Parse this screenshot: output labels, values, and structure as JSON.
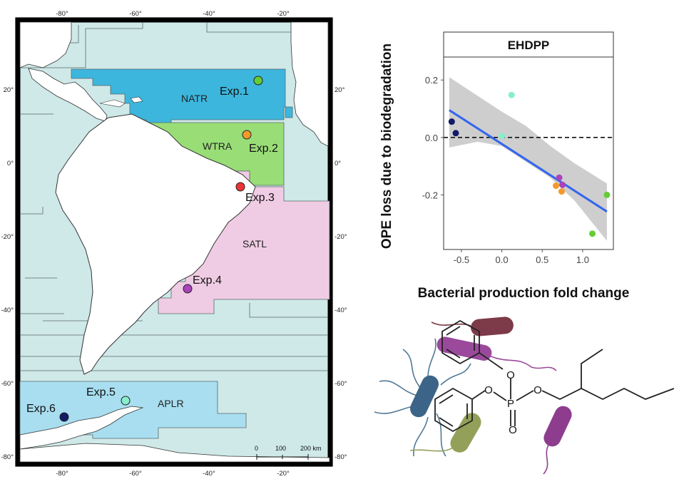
{
  "map": {
    "top_ticks": [
      "-80°",
      "-60°",
      "-40°",
      "-20°"
    ],
    "bottom_ticks": [
      "-80°",
      "-60°",
      "-40°",
      "-20°"
    ],
    "left_ticks": [
      "20°",
      "0°",
      "-20°",
      "-40°",
      "-60°",
      "-80°"
    ],
    "right_ticks": [
      "20°",
      "0°",
      "-20°",
      "-40°",
      "-60°",
      "-80°"
    ],
    "provinces": [
      {
        "code": "NATR",
        "color": "#3cb6dd"
      },
      {
        "code": "WTRA",
        "color": "#99dd77"
      },
      {
        "code": "SATL",
        "color": "#f0cce4"
      },
      {
        "code": "APLR",
        "color": "#a8def0"
      }
    ],
    "experiments": [
      {
        "label": "Exp.1",
        "color": "#66cc33"
      },
      {
        "label": "Exp.2",
        "color": "#f39a2c"
      },
      {
        "label": "Exp.3",
        "color": "#ee3333"
      },
      {
        "label": "Exp.4",
        "color": "#aa44bb"
      },
      {
        "label": "Exp.5",
        "color": "#88eecc"
      },
      {
        "label": "Exp.6",
        "color": "#111a66"
      }
    ],
    "colors": {
      "ocean": "#cfe8e8",
      "land": "#ffffff",
      "border": "#5a6a6a"
    },
    "scale_bar": {
      "labels": [
        "0",
        "100",
        "200 km"
      ]
    }
  },
  "chart_data": {
    "type": "scatter",
    "title": "EHDPP",
    "xlabel": "Bacterial production fold change",
    "ylabel": "OPE loss due to biodegradation",
    "x_ticks": [
      "-0.5",
      "0.0",
      "0.5",
      "1.0"
    ],
    "y_ticks": [
      "0.2",
      "0.0",
      "-0.2"
    ],
    "xlim": [
      -0.72,
      1.38
    ],
    "ylim": [
      -0.39,
      0.28
    ],
    "reference_line_y": 0.0,
    "points": [
      {
        "x": -0.62,
        "y": 0.055,
        "color": "#111a66"
      },
      {
        "x": -0.57,
        "y": 0.015,
        "color": "#111a66"
      },
      {
        "x": 0.12,
        "y": 0.148,
        "color": "#88eecc"
      },
      {
        "x": 0.0,
        "y": 0.005,
        "color": "#88eecc"
      },
      {
        "x": 0.67,
        "y": -0.168,
        "color": "#f39a2c"
      },
      {
        "x": 0.74,
        "y": -0.188,
        "color": "#f39a2c"
      },
      {
        "x": 0.71,
        "y": -0.14,
        "color": "#aa44bb"
      },
      {
        "x": 0.75,
        "y": -0.165,
        "color": "#aa44bb"
      },
      {
        "x": 1.3,
        "y": -0.2,
        "color": "#66cc33"
      },
      {
        "x": 1.12,
        "y": -0.335,
        "color": "#66cc33"
      }
    ],
    "fit": {
      "x": [
        -0.65,
        1.3
      ],
      "y": [
        0.095,
        -0.258
      ],
      "color": "#3366ee"
    },
    "confidence_band": {
      "x": [
        -0.65,
        -0.3,
        0.0,
        0.3,
        0.6,
        0.9,
        1.3
      ],
      "upper": [
        0.21,
        0.145,
        0.09,
        0.04,
        -0.03,
        -0.09,
        -0.16
      ],
      "lower": [
        -0.035,
        -0.015,
        -0.03,
        -0.085,
        -0.14,
        -0.22,
        -0.36
      ],
      "color": "#bdbdbd"
    },
    "grid": false
  }
}
